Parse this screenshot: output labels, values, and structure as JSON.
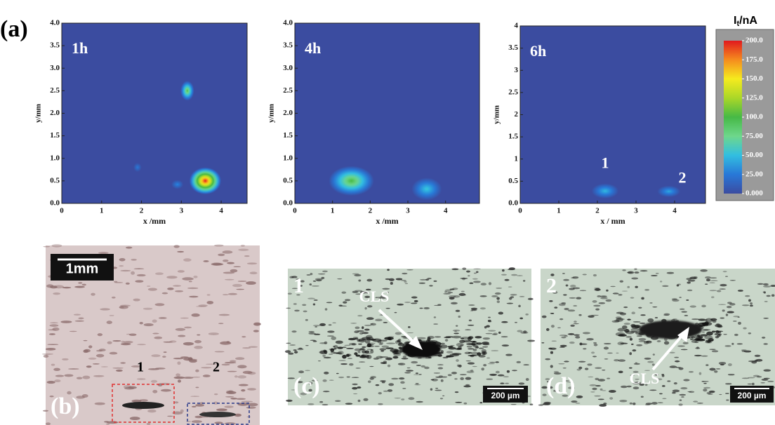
{
  "figure": {
    "panel_a": {
      "label": "(a)",
      "maps": [
        {
          "label": "1h",
          "xlabel": "x /mm",
          "ylabel": "y/mm",
          "xlim": [
            0,
            4.65
          ],
          "ylim": [
            0,
            4
          ],
          "xticks": [
            0,
            1,
            2,
            3,
            4
          ],
          "yticks": [
            {
              "value": 0,
              "label": "0.0"
            },
            0.5,
            {
              "value": 1,
              "label": "1.0"
            },
            1.5,
            {
              "value": 2,
              "label": "2.0"
            },
            2.5,
            {
              "value": 3,
              "label": "3.0"
            },
            3.5,
            {
              "value": 4,
              "label": "4.0"
            }
          ],
          "spots": [
            {
              "x": 3.6,
              "y": 0.5,
              "current": 200,
              "x_spread": 0.4,
              "y_spread": 0.3
            },
            {
              "x": 3.15,
              "y": 2.5,
              "current": 95,
              "x_spread": 0.17,
              "y_spread": 0.22
            },
            {
              "x": 1.9,
              "y": 0.8,
              "current": 25,
              "x_spread": 0.1,
              "y_spread": 0.1
            },
            {
              "x": 2.9,
              "y": 0.42,
              "current": 30,
              "x_spread": 0.15,
              "y_spread": 0.1
            }
          ]
        },
        {
          "label": "4h",
          "xlabel": "x /mm",
          "ylabel": "y/mm",
          "xlim": [
            0,
            4.9
          ],
          "ylim": [
            0,
            4
          ],
          "xticks": [
            0,
            1,
            2,
            3,
            4
          ],
          "yticks": [
            {
              "value": 0,
              "label": "0.0"
            },
            0.5,
            {
              "value": 1,
              "label": "1.0"
            },
            1.5,
            {
              "value": 2,
              "label": "2.0"
            },
            2.5,
            {
              "value": 3,
              "label": "3.0"
            },
            3.5,
            {
              "value": 4,
              "label": "4.0"
            }
          ],
          "spots": [
            {
              "x": 1.5,
              "y": 0.5,
              "current": 100,
              "x_spread": 0.6,
              "y_spread": 0.33
            },
            {
              "x": 3.5,
              "y": 0.32,
              "current": 55,
              "x_spread": 0.4,
              "y_spread": 0.25
            }
          ]
        },
        {
          "label": "6h",
          "xlabel": "x / mm",
          "ylabel": "y/mm",
          "xlim": [
            0,
            4.8
          ],
          "ylim": [
            0,
            4
          ],
          "xticks": [
            0,
            1,
            2,
            3,
            4
          ],
          "yticks": [
            {
              "value": 0,
              "label": "0.0"
            },
            0.5,
            1,
            1.5,
            2,
            2.5,
            3,
            3.5,
            4
          ],
          "spots": [
            {
              "x": 2.2,
              "y": 0.28,
              "current": 48,
              "x_spread": 0.35,
              "y_spread": 0.17,
              "label": "1"
            },
            {
              "x": 3.85,
              "y": 0.27,
              "current": 42,
              "x_spread": 0.3,
              "y_spread": 0.13,
              "label": "2"
            }
          ]
        }
      ],
      "colorbar": {
        "symbol": "I",
        "subscript": "t",
        "unit": "/nA",
        "lim": [
          0,
          200
        ],
        "ticks": [
          {
            "value": 200,
            "label": "200.0"
          },
          {
            "value": 175,
            "label": "175.0"
          },
          {
            "value": 150,
            "label": "150.0"
          },
          {
            "value": 125,
            "label": "125.0"
          },
          {
            "value": 100,
            "label": "100.0"
          },
          {
            "value": 75,
            "label": "75.00"
          },
          {
            "value": 50,
            "label": "50.00"
          },
          {
            "value": 25,
            "label": "25.00"
          },
          {
            "value": 0,
            "label": "0.000"
          }
        ]
      }
    },
    "panel_b": {
      "label": "(b)",
      "scale_bar": "1mm",
      "site_1": "1",
      "site_2": "2"
    },
    "panel_c": {
      "label": "(c)",
      "site": "1",
      "annotation": "CLS",
      "scale_bar": "200 µm"
    },
    "panel_d": {
      "label": "(d)",
      "site": "2",
      "annotation": "CLS",
      "scale_bar": "200 µm"
    }
  }
}
